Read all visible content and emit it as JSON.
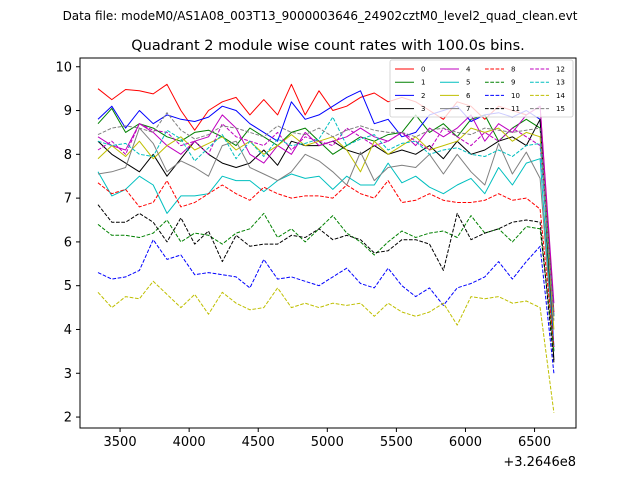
{
  "chart_data": {
    "type": "line",
    "suptitle": "Data file: modeM0/AS1A08_003T13_9000003646_24902cztM0_level2_quad_clean.evt",
    "title": "Quadrant 2 module wise count rates with 100.0s bins.",
    "xlabel": "",
    "ylabel": "",
    "x_offset_label": "+3.2646e8",
    "xlim": [
      3210,
      6800
    ],
    "ylim": [
      1.75,
      10.2
    ],
    "xticks": [
      3500,
      4000,
      4500,
      5000,
      5500,
      6000,
      6500
    ],
    "yticks": [
      2,
      3,
      4,
      5,
      6,
      7,
      8,
      9,
      10
    ],
    "x": [
      3340,
      3440,
      3540,
      3640,
      3740,
      3840,
      3940,
      4040,
      4140,
      4240,
      4340,
      4440,
      4540,
      4640,
      4740,
      4840,
      4940,
      5040,
      5140,
      5240,
      5340,
      5440,
      5540,
      5640,
      5740,
      5840,
      5940,
      6040,
      6140,
      6240,
      6340,
      6440,
      6540,
      6640
    ],
    "legend_position": "top-right",
    "series": [
      {
        "name": "0",
        "color": "#ff0000",
        "style": "solid",
        "values": [
          9.5,
          9.25,
          9.48,
          9.45,
          9.38,
          9.6,
          9.0,
          8.55,
          9.0,
          9.2,
          9.3,
          8.9,
          9.25,
          8.9,
          9.6,
          8.9,
          9.45,
          9.0,
          9.1,
          9.3,
          9.4,
          9.2,
          9.3,
          9.2,
          9.0,
          8.8,
          9.2,
          9.1,
          8.8,
          9.1,
          9.0,
          8.9,
          9.1,
          4.4
        ]
      },
      {
        "name": "1",
        "color": "#008000",
        "style": "solid",
        "values": [
          8.7,
          9.05,
          8.5,
          8.7,
          8.6,
          8.4,
          8.3,
          8.5,
          8.55,
          8.4,
          8.2,
          8.6,
          8.4,
          8.2,
          8.5,
          8.6,
          8.3,
          8.0,
          8.2,
          8.4,
          8.3,
          8.45,
          8.5,
          8.9,
          8.5,
          8.7,
          8.4,
          8.8,
          8.9,
          8.3,
          8.6,
          8.8,
          8.6,
          4.3
        ]
      },
      {
        "name": "2",
        "color": "#0000ff",
        "style": "solid",
        "values": [
          8.8,
          9.1,
          8.6,
          9.0,
          8.7,
          8.9,
          8.8,
          8.75,
          8.85,
          9.1,
          9.0,
          8.7,
          8.5,
          8.3,
          9.2,
          8.8,
          8.9,
          9.1,
          9.3,
          9.45,
          8.7,
          8.8,
          8.4,
          8.5,
          8.9,
          9.0,
          9.1,
          8.75,
          8.9,
          8.95,
          8.85,
          9.0,
          8.8,
          3.6
        ]
      },
      {
        "name": "3",
        "color": "#000000",
        "style": "solid",
        "values": [
          8.3,
          8.0,
          7.8,
          7.6,
          8.0,
          7.5,
          7.9,
          8.3,
          8.0,
          7.8,
          7.7,
          7.8,
          8.1,
          7.75,
          8.3,
          8.2,
          8.2,
          8.3,
          8.1,
          8.0,
          8.2,
          8.0,
          8.1,
          8.0,
          8.2,
          7.9,
          8.3,
          8.0,
          8.1,
          8.3,
          8.4,
          8.2,
          8.8,
          3.3
        ]
      },
      {
        "name": "4",
        "color": "#bf00bf",
        "style": "solid",
        "values": [
          8.4,
          8.2,
          8.1,
          8.7,
          8.5,
          8.2,
          8.0,
          8.3,
          8.4,
          8.9,
          8.6,
          8.0,
          7.8,
          8.2,
          8.0,
          8.5,
          8.2,
          8.3,
          8.4,
          8.6,
          8.4,
          8.3,
          8.5,
          8.2,
          8.6,
          8.4,
          8.6,
          8.9,
          8.3,
          8.7,
          8.5,
          8.9,
          9.1,
          4.6
        ]
      },
      {
        "name": "5",
        "color": "#00bfbf",
        "style": "solid",
        "values": [
          7.6,
          7.05,
          7.2,
          7.5,
          7.3,
          6.65,
          7.05,
          7.05,
          7.1,
          7.5,
          7.4,
          7.4,
          7.15,
          7.4,
          7.55,
          7.45,
          7.5,
          7.2,
          7.5,
          7.3,
          7.3,
          7.8,
          7.35,
          7.5,
          7.25,
          7.1,
          7.3,
          7.45,
          7.1,
          7.7,
          7.3,
          7.8,
          7.9,
          3.5
        ]
      },
      {
        "name": "6",
        "color": "#bfbf00",
        "style": "solid",
        "values": [
          7.9,
          8.2,
          7.95,
          8.3,
          7.9,
          8.2,
          8.4,
          8.1,
          8.25,
          8.4,
          8.1,
          8.3,
          8.0,
          8.2,
          8.45,
          8.2,
          8.3,
          8.4,
          8.1,
          7.6,
          8.3,
          8.0,
          8.2,
          8.4,
          8.1,
          8.2,
          8.3,
          8.6,
          8.5,
          8.6,
          8.3,
          8.5,
          8.4,
          4.0
        ]
      },
      {
        "name": "7",
        "color": "#808080",
        "style": "solid",
        "values": [
          7.55,
          7.6,
          7.7,
          8.6,
          8.25,
          7.6,
          7.85,
          7.7,
          7.5,
          8.2,
          8.3,
          7.7,
          7.55,
          7.4,
          7.6,
          8.0,
          7.85,
          7.6,
          7.3,
          8.05,
          7.4,
          7.7,
          7.75,
          7.7,
          8.0,
          7.55,
          8.0,
          7.6,
          7.3,
          8.25,
          7.55,
          8.05,
          7.45,
          3.5
        ]
      },
      {
        "name": "8",
        "color": "#ff0000",
        "style": "dashed",
        "values": [
          7.35,
          7.1,
          7.2,
          6.8,
          6.9,
          7.4,
          6.8,
          6.9,
          7.1,
          7.3,
          7.1,
          6.95,
          7.25,
          7.1,
          7.0,
          7.05,
          7.05,
          7.0,
          7.3,
          7.1,
          7.0,
          7.4,
          6.9,
          6.95,
          7.1,
          6.95,
          6.9,
          6.9,
          6.95,
          7.1,
          6.95,
          7.0,
          6.75,
          3.6
        ]
      },
      {
        "name": "9",
        "color": "#008000",
        "style": "dashed",
        "values": [
          6.4,
          6.15,
          6.15,
          6.1,
          6.2,
          6.5,
          6.0,
          6.2,
          6.15,
          5.95,
          6.2,
          6.3,
          6.65,
          6.1,
          6.3,
          6.0,
          6.3,
          6.6,
          6.2,
          6.0,
          5.7,
          6.0,
          6.25,
          6.1,
          6.2,
          6.25,
          6.1,
          6.6,
          6.2,
          6.3,
          6.0,
          6.35,
          6.3,
          3.5
        ]
      },
      {
        "name": "10",
        "color": "#0000ff",
        "style": "dashed",
        "values": [
          5.3,
          5.15,
          5.2,
          5.35,
          6.05,
          5.6,
          5.7,
          5.25,
          5.3,
          5.25,
          5.2,
          4.95,
          5.6,
          5.15,
          5.2,
          5.1,
          5.0,
          5.2,
          5.4,
          5.05,
          4.95,
          5.4,
          5.0,
          4.75,
          4.95,
          4.55,
          4.95,
          5.05,
          5.2,
          5.55,
          5.15,
          5.55,
          5.9,
          3.0
        ]
      },
      {
        "name": "11",
        "color": "#000000",
        "style": "dashed",
        "values": [
          6.85,
          6.45,
          6.45,
          6.65,
          6.45,
          6.0,
          6.55,
          5.95,
          6.25,
          5.55,
          6.15,
          5.9,
          5.95,
          5.95,
          6.15,
          6.1,
          6.3,
          6.05,
          6.15,
          6.05,
          5.75,
          5.8,
          6.05,
          6.05,
          5.95,
          5.35,
          6.65,
          6.05,
          6.2,
          6.3,
          6.45,
          6.5,
          6.45,
          3.25
        ]
      },
      {
        "name": "12",
        "color": "#bf00bf",
        "style": "dashed",
        "values": [
          8.1,
          8.3,
          8.0,
          8.7,
          8.55,
          8.5,
          8.2,
          8.3,
          8.0,
          8.7,
          8.4,
          8.3,
          8.2,
          8.5,
          8.1,
          8.4,
          8.3,
          8.2,
          8.6,
          8.4,
          8.2,
          8.3,
          8.5,
          8.3,
          8.1,
          8.6,
          8.4,
          8.2,
          8.5,
          8.3,
          8.6,
          8.4,
          8.2,
          4.3
        ]
      },
      {
        "name": "13",
        "color": "#00bfbf",
        "style": "dashed",
        "values": [
          8.3,
          8.2,
          8.25,
          8.0,
          7.95,
          8.55,
          8.35,
          7.85,
          8.15,
          8.45,
          7.9,
          8.3,
          7.95,
          8.35,
          8.2,
          8.25,
          8.35,
          8.85,
          8.2,
          8.35,
          8.45,
          8.1,
          8.25,
          8.3,
          8.0,
          8.1,
          8.15,
          8.0,
          7.95,
          8.1,
          7.95,
          8.2,
          8.25,
          4.3
        ]
      },
      {
        "name": "14",
        "color": "#bfbf00",
        "style": "dashed",
        "values": [
          4.85,
          4.5,
          4.75,
          4.7,
          5.1,
          4.8,
          4.5,
          4.8,
          4.35,
          4.85,
          4.6,
          4.45,
          4.5,
          4.95,
          4.5,
          4.6,
          4.5,
          4.6,
          4.55,
          4.6,
          4.3,
          4.6,
          4.4,
          4.3,
          4.4,
          4.6,
          4.1,
          4.75,
          4.7,
          4.75,
          4.6,
          4.65,
          4.5,
          2.1
        ]
      },
      {
        "name": "15",
        "color": "#808080",
        "style": "dashed",
        "values": [
          8.45,
          8.6,
          8.65,
          8.6,
          8.5,
          8.95,
          8.55,
          8.35,
          8.45,
          8.65,
          8.6,
          8.5,
          8.4,
          8.65,
          8.5,
          8.45,
          8.6,
          8.4,
          8.55,
          8.65,
          8.55,
          8.5,
          8.5,
          8.4,
          8.55,
          8.6,
          8.5,
          8.45,
          8.6,
          8.55,
          8.5,
          8.55,
          8.6,
          4.2
        ]
      }
    ]
  }
}
